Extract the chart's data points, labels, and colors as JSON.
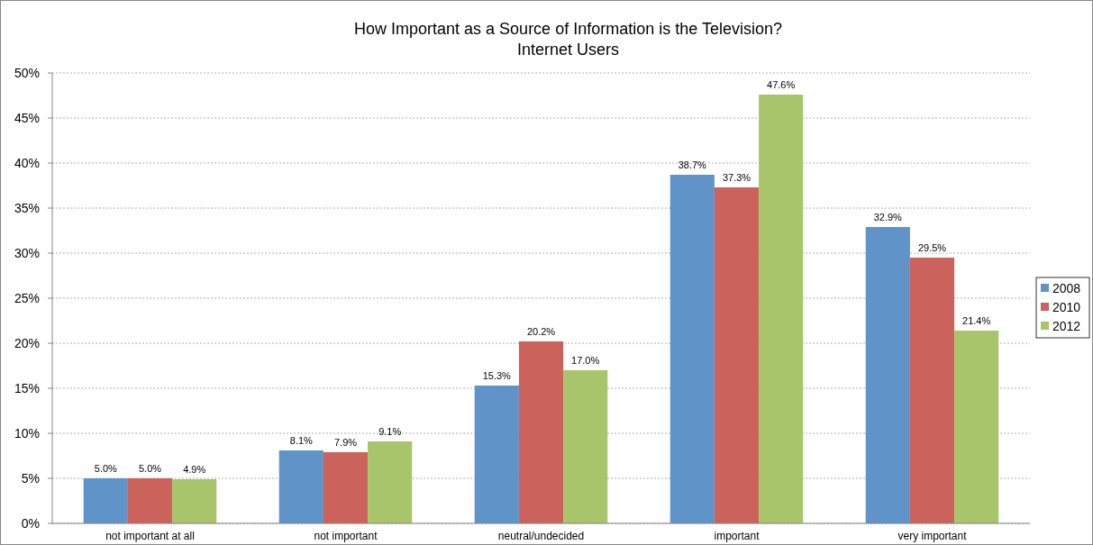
{
  "chart_data": {
    "type": "bar",
    "title": "How Important as a Source of Information is the Television?",
    "subtitle": "Internet Users",
    "categories": [
      "not important at all",
      "not important",
      "neutral/undecided",
      "important",
      "very important"
    ],
    "series": [
      {
        "name": "2008",
        "color": "#6094c9",
        "values": [
          5.0,
          8.1,
          15.3,
          38.7,
          32.9
        ],
        "value_labels": [
          "5.0%",
          "8.1%",
          "15.3%",
          "38.7%",
          "32.9%"
        ]
      },
      {
        "name": "2010",
        "color": "#cc625c",
        "values": [
          5.0,
          7.9,
          20.2,
          37.3,
          29.5
        ],
        "value_labels": [
          "5.0%",
          "7.9%",
          "20.2%",
          "37.3%",
          "29.5%"
        ]
      },
      {
        "name": "2012",
        "color": "#a9c56b",
        "values": [
          4.9,
          9.1,
          17.0,
          47.6,
          21.4
        ],
        "value_labels": [
          "4.9%",
          "9.1%",
          "17.0%",
          "47.6%",
          "21.4%"
        ]
      }
    ],
    "ylim": [
      0,
      50
    ],
    "yticks": [
      {
        "value": 0,
        "label": "0%"
      },
      {
        "value": 5,
        "label": "5%"
      },
      {
        "value": 10,
        "label": "10%"
      },
      {
        "value": 15,
        "label": "15%"
      },
      {
        "value": 20,
        "label": "20%"
      },
      {
        "value": 25,
        "label": "25%"
      },
      {
        "value": 30,
        "label": "30%"
      },
      {
        "value": 35,
        "label": "35%"
      },
      {
        "value": 40,
        "label": "40%"
      },
      {
        "value": 45,
        "label": "45%"
      },
      {
        "value": 50,
        "label": "50%"
      }
    ],
    "grid": "y",
    "legend": "right"
  }
}
